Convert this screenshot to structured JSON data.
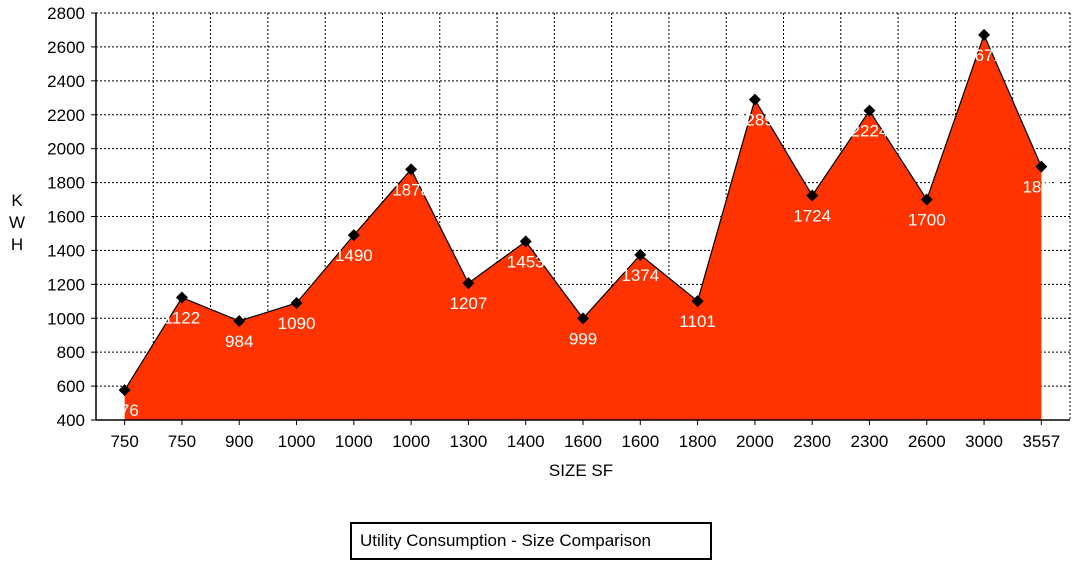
{
  "chart_data": {
    "type": "area",
    "xlabel": "SIZE SF",
    "ylabel": "KWH",
    "ylim": [
      400,
      2800
    ],
    "yticks": [
      400,
      600,
      800,
      1000,
      1200,
      1400,
      1600,
      1800,
      2000,
      2200,
      2400,
      2600,
      2800
    ],
    "categories": [
      "750",
      "750",
      "900",
      "1000",
      "1000",
      "1000",
      "1300",
      "1400",
      "1600",
      "1600",
      "1800",
      "2000",
      "2300",
      "2300",
      "2600",
      "3000",
      "3557"
    ],
    "values": [
      576,
      1122,
      984,
      1090,
      1490,
      1878,
      1207,
      1453,
      999,
      1374,
      1101,
      2289,
      1724,
      2224,
      1700,
      2671,
      1894
    ],
    "data_labels": [
      "576",
      "1122",
      "984",
      "1090",
      "1490",
      "1878",
      "1207",
      "1453",
      "999",
      "1374",
      "1101",
      "2289",
      "1724",
      "2224",
      "1700",
      "2671",
      "1894"
    ],
    "grid": true,
    "legend": [
      "Utility Consumption - Size Comparison"
    ],
    "legend_position": "bottom-center",
    "fill_color": "#ff3300",
    "marker": "diamond"
  }
}
